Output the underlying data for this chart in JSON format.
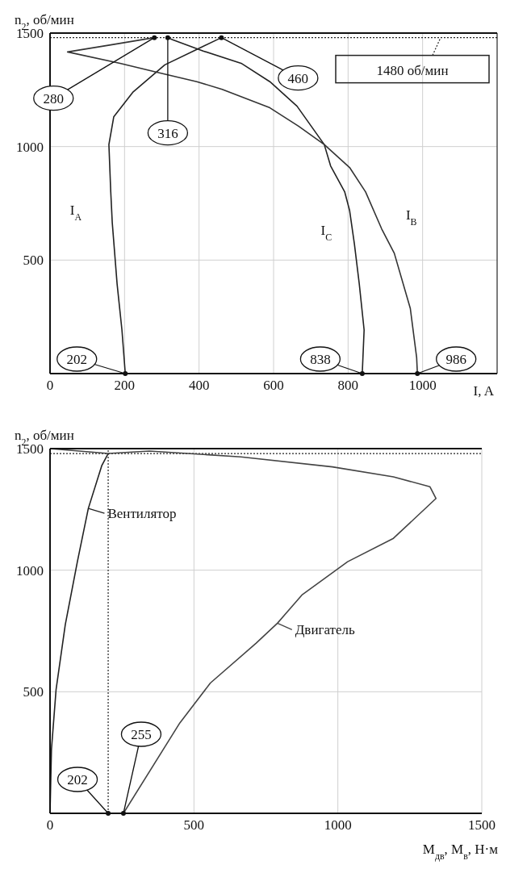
{
  "chart_data": [
    {
      "type": "line",
      "xlabel": "I, A",
      "ylabel": "n$_{2}$, об/мин",
      "xlim": [
        0,
        1200
      ],
      "xticks": [
        0,
        200,
        400,
        600,
        800,
        1000
      ],
      "ylim": [
        0,
        1500
      ],
      "yticks": [
        500,
        1000,
        1500
      ],
      "grid": true,
      "marker": "none",
      "line_style": "solid",
      "series": [
        {
          "name": "I$_{A}$",
          "color": "#222222",
          "x": [
            202,
            193,
            180,
            167,
            163,
            158,
            171,
            222,
            308,
            394,
            460
          ],
          "values": [
            0,
            192,
            395,
            665,
            800,
            1009,
            1131,
            1239,
            1360,
            1428,
            1480
          ]
        },
        {
          "name": "I$_{C}$",
          "color": "#222222",
          "x": [
            838,
            843,
            830,
            817,
            804,
            791,
            753,
            736,
            663,
            590,
            513,
            411,
            329,
            316
          ],
          "values": [
            0,
            192,
            395,
            570,
            719,
            800,
            915,
            1009,
            1178,
            1286,
            1367,
            1421,
            1471,
            1480
          ]
        },
        {
          "name": "I$_{B}$",
          "color": "#333333",
          "x": [
            986,
            984,
            967,
            924,
            890,
            847,
            804,
            736,
            667,
            590,
            462,
            394,
            291,
            188,
            47,
            163,
            280
          ],
          "values": [
            0,
            71,
            287,
            530,
            638,
            800,
            908,
            1009,
            1090,
            1171,
            1252,
            1286,
            1326,
            1367,
            1417,
            1448,
            1480
          ]
        }
      ],
      "ref_lines": [
        {
          "axis": "y",
          "value": 1480,
          "label": "1480 об/мин",
          "line_style": "dotted"
        }
      ],
      "annotations": [
        {
          "text": "280",
          "x": 280,
          "y": 1480
        },
        {
          "text": "316",
          "x": 316,
          "y": 1480
        },
        {
          "text": "460",
          "x": 460,
          "y": 1480
        },
        {
          "text": "202",
          "x": 202,
          "y": 0
        },
        {
          "text": "838",
          "x": 838,
          "y": 0
        },
        {
          "text": "986",
          "x": 986,
          "y": 0
        }
      ]
    },
    {
      "type": "line",
      "xlabel": "M$_{дв}$, M$_{в}$, Н·м",
      "ylabel": "n$_{2}$, об/мин",
      "xlim": [
        0,
        1500
      ],
      "xticks": [
        0,
        500,
        1000,
        1500
      ],
      "ylim": [
        0,
        1500
      ],
      "yticks": [
        500,
        1000,
        1500
      ],
      "grid": true,
      "legend": "left",
      "marker": "none",
      "line_style": "solid",
      "series": [
        {
          "name": "Вентилятор",
          "color": "#222222",
          "x": [
            0,
            5,
            21,
            53,
            95,
            133,
            180,
            202
          ],
          "values": [
            0,
            263,
            509,
            776,
            1035,
            1254,
            1431,
            1480
          ]
        },
        {
          "name": "Двигатель",
          "color": "#444444",
          "x": [
            255,
            451,
            557,
            716,
            790,
            875,
            1034,
            1193,
            1341,
            1320,
            1193,
            981,
            663,
            345,
            202,
            0
          ],
          "values": [
            0,
            372,
            536,
            700,
            782,
            898,
            1035,
            1131,
            1295,
            1343,
            1384,
            1425,
            1466,
            1490,
            1480,
            1500
          ]
        }
      ],
      "ref_lines": [
        {
          "axis": "x",
          "value": 202,
          "line_style": "dotted"
        },
        {
          "axis": "y",
          "value": 1480,
          "line_style": "dotted"
        }
      ],
      "annotations": [
        {
          "text": "202",
          "x": 202,
          "y": 0
        },
        {
          "text": "255",
          "x": 255,
          "y": 0
        }
      ]
    }
  ]
}
